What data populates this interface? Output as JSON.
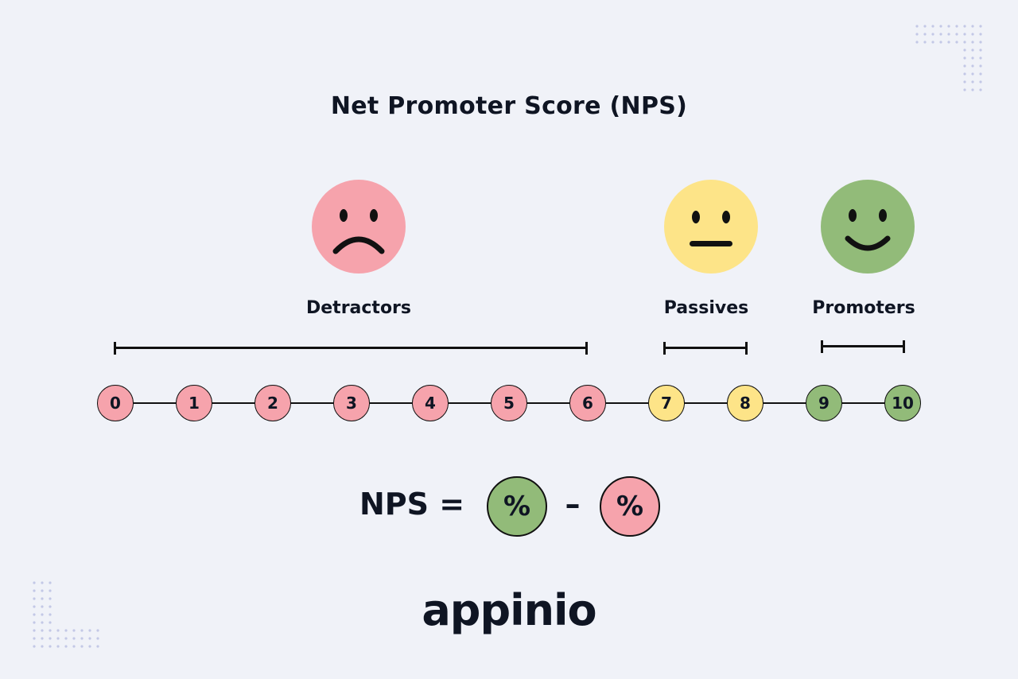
{
  "title": "Net Promoter Score (NPS)",
  "colors": {
    "detractor": "#f6a3ac",
    "passive": "#fde488",
    "promoter": "#92bb79",
    "background": "#f0f2f8",
    "ink": "#0f1523",
    "dot": "#c3c8e6"
  },
  "groups": [
    {
      "key": "detractors",
      "label": "Detractors",
      "face": "sad-face-icon",
      "range": [
        0,
        6
      ]
    },
    {
      "key": "passives",
      "label": "Passives",
      "face": "neutral-face-icon",
      "range": [
        7,
        8
      ]
    },
    {
      "key": "promoters",
      "label": "Promoters",
      "face": "happy-face-icon",
      "range": [
        9,
        10
      ]
    }
  ],
  "scale": [
    "0",
    "1",
    "2",
    "3",
    "4",
    "5",
    "6",
    "7",
    "8",
    "9",
    "10"
  ],
  "formula": {
    "label": "NPS =",
    "promoter_symbol": "%",
    "operator": "–",
    "detractor_symbol": "%"
  },
  "logo": "appinio"
}
